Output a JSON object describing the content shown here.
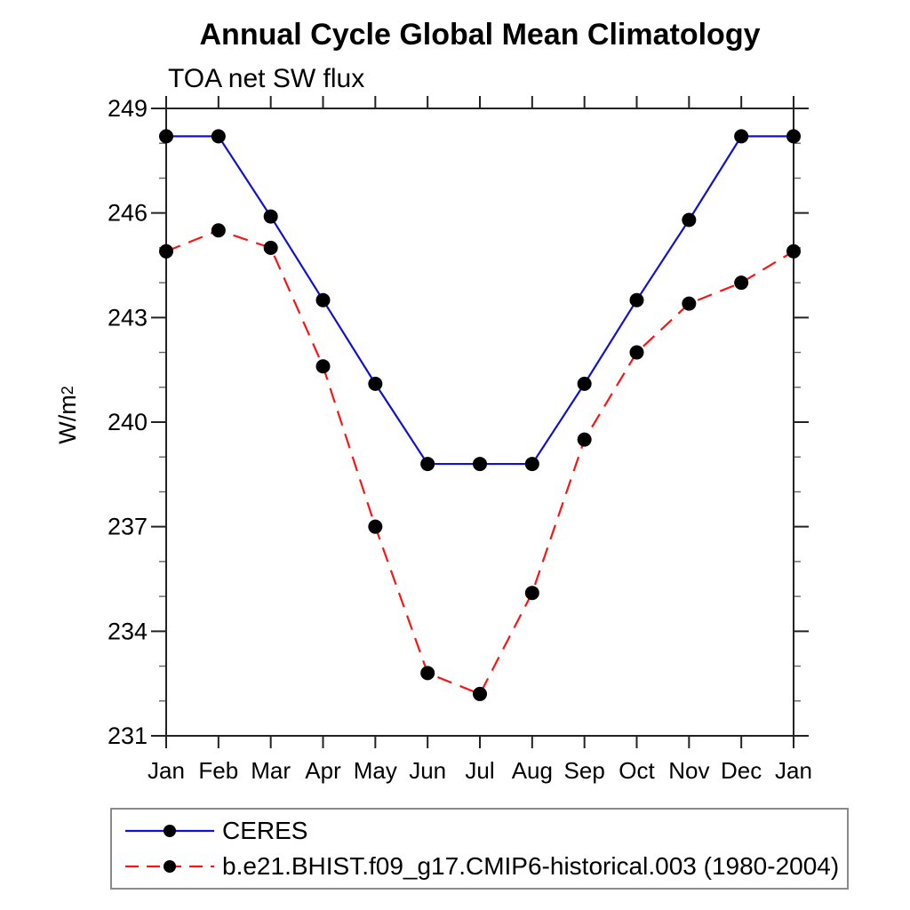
{
  "chart_data": {
    "type": "line",
    "title": "Annual Cycle Global Mean Climatology",
    "subtitle": "TOA net SW flux",
    "ylabel": "W/m²",
    "ylabel_base": "W/m",
    "ylabel_superscript": "2",
    "xlabel": "",
    "x_tick_labels": [
      "Jan",
      "Feb",
      "Mar",
      "Apr",
      "May",
      "Jun",
      "Jul",
      "Aug",
      "Sep",
      "Oct",
      "Nov",
      "Dec",
      "Jan"
    ],
    "y_ticks_major": [
      231,
      234,
      237,
      240,
      243,
      246,
      249
    ],
    "y_minor_step": 1,
    "ylim": [
      231,
      249
    ],
    "xlim": [
      0,
      12
    ],
    "grid": false,
    "legend_position": "bottom-left-box",
    "series": [
      {
        "name": "CERES",
        "style": "solid",
        "color": "#1212cd",
        "marker": "circle",
        "marker_color": "#000000",
        "values": [
          248.2,
          248.2,
          245.9,
          243.5,
          241.1,
          238.8,
          238.8,
          238.8,
          241.1,
          243.5,
          245.8,
          248.2,
          248.2
        ]
      },
      {
        "name": "b.e21.BHIST.f09_g17.CMIP6-historical.003 (1980-2004)",
        "style": "dashed",
        "color": "#fb1414",
        "marker": "circle",
        "marker_color": "#000000",
        "values": [
          244.9,
          245.5,
          245.0,
          241.6,
          237.0,
          232.8,
          232.2,
          235.1,
          239.5,
          242.0,
          243.4,
          244.0,
          244.9
        ]
      }
    ],
    "axis_color": "#222222",
    "minor_tick_color": "#666666"
  }
}
